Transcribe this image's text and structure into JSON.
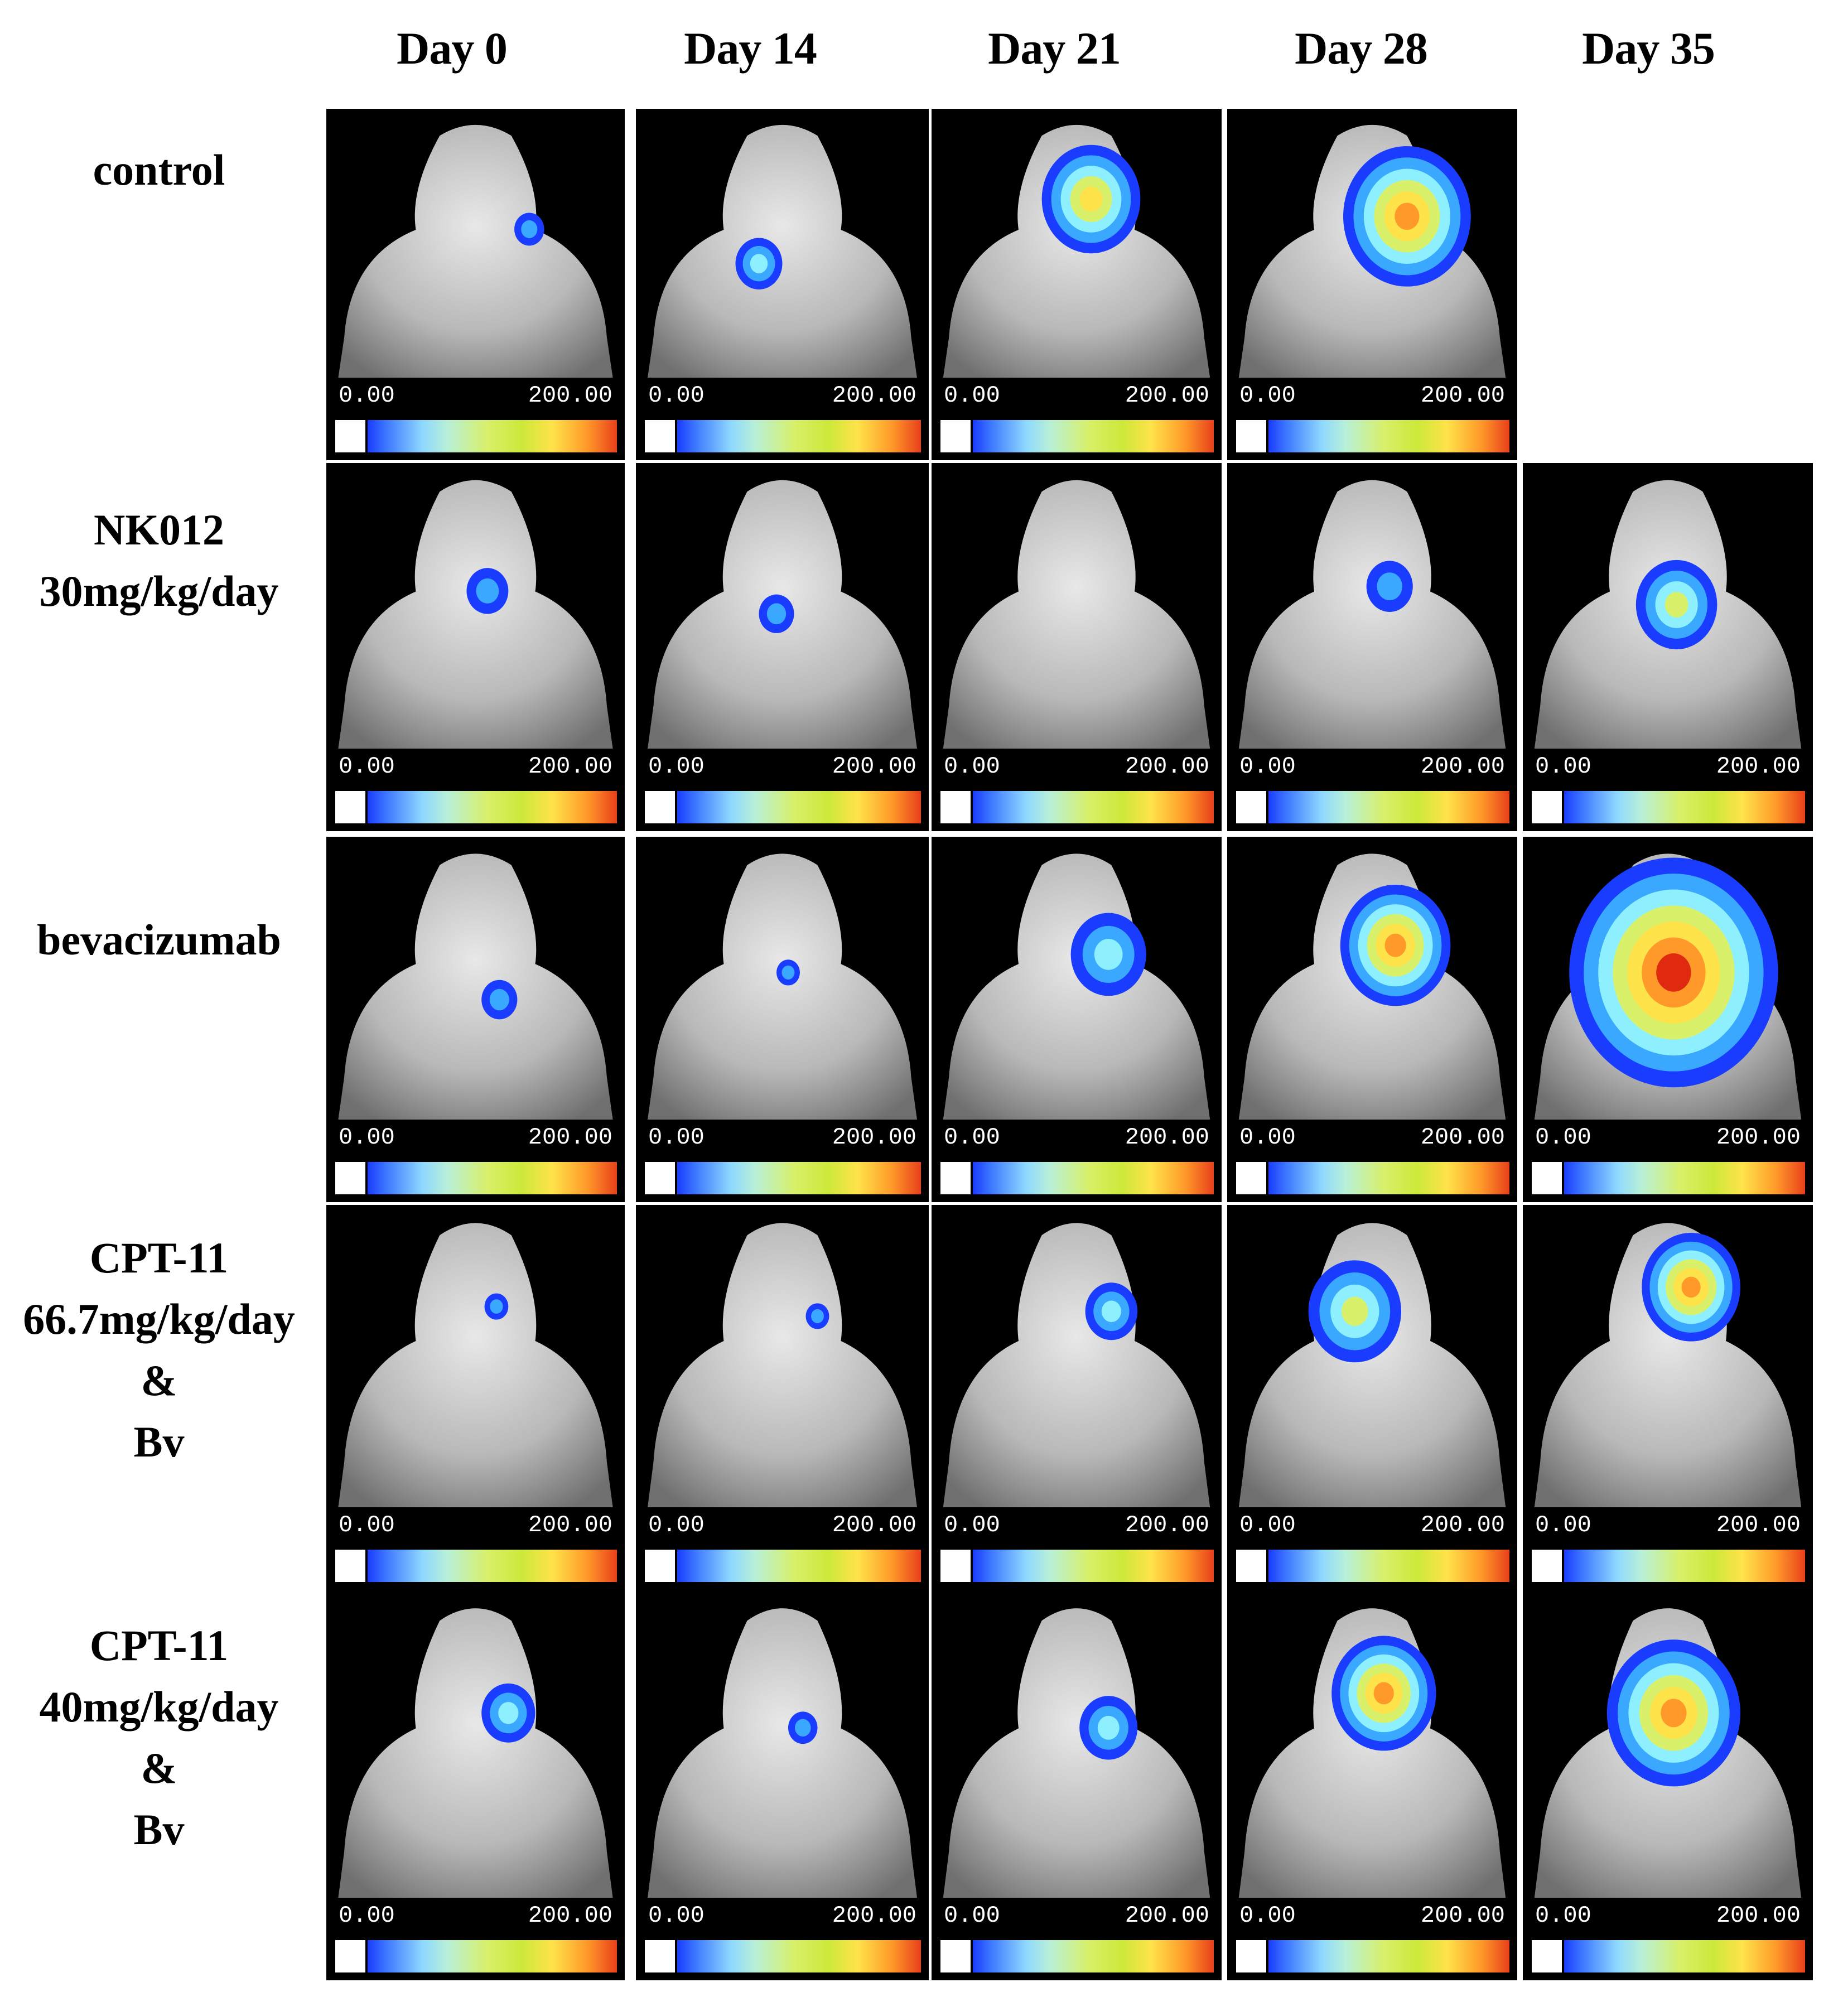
{
  "columns": [
    "Day 0",
    "Day 14",
    "Day 21",
    "Day 28",
    "Day 35"
  ],
  "rows": [
    {
      "label": [
        "control"
      ]
    },
    {
      "label": [
        "NK012",
        "30mg/kg/day"
      ]
    },
    {
      "label": [
        "bevacizumab"
      ]
    },
    {
      "label": [
        "CPT-11",
        "66.7mg/kg/day",
        "&",
        "Bv"
      ]
    },
    {
      "label": [
        "CPT-11",
        "40mg/kg/day",
        "&",
        "Bv"
      ]
    }
  ],
  "scale": {
    "min": "0.00",
    "max": "200.00"
  },
  "colors": {
    "background": "#000000",
    "scale_low": "#1a3cff",
    "scale_mid": "#cde83a",
    "scale_high": "#e8401a"
  }
}
